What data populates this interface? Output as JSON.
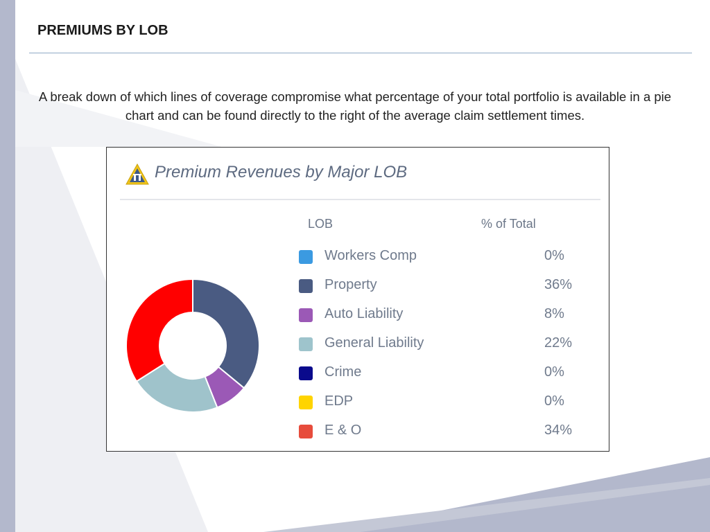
{
  "slide": {
    "title": "PREMIUMS BY LOB",
    "description": "A break down of which lines of coverage compromise what percentage of your total portfolio is available in a pie chart and can be found directly to the right of the average claim settlement times."
  },
  "chart_data": {
    "type": "pie",
    "title": "Premium Revenues by Major LOB",
    "legend_headers": {
      "lob": "LOB",
      "pct": "% of Total"
    },
    "categories": [
      "Workers Comp",
      "Property",
      "Auto Liability",
      "General Liability",
      "Crime",
      "EDP",
      "E & O"
    ],
    "values": [
      0,
      36,
      8,
      22,
      0,
      0,
      34
    ],
    "value_labels": [
      "0%",
      "36%",
      "8%",
      "22%",
      "0%",
      "0%",
      "34%"
    ],
    "colors": [
      "#3b9ae1",
      "#4a5b82",
      "#9b59b6",
      "#9ec4cc",
      "#0a0a8c",
      "#ffd400",
      "#e74c3c"
    ],
    "slice_colors": [
      "#3b9ae1",
      "#4a5b82",
      "#9b59b6",
      "#9fc3cb",
      "#0a0a8c",
      "#ffd400",
      "#ff0000"
    ],
    "style": "donut",
    "legend_position": "right"
  }
}
